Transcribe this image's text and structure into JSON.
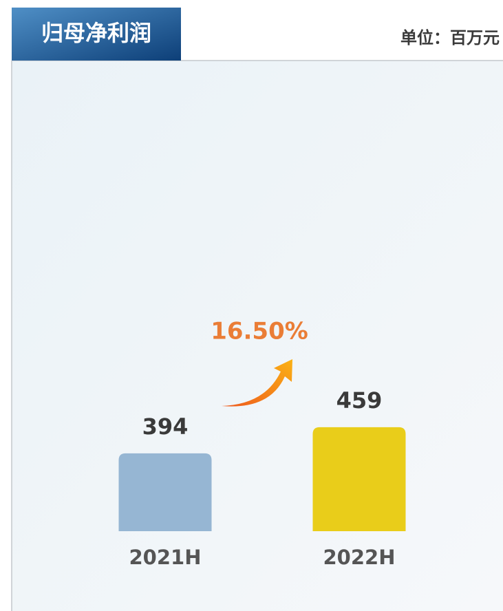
{
  "chart_data": {
    "type": "bar",
    "title": "归母净利润",
    "unit": "单位：百万元",
    "categories": [
      "2021H",
      "2022H"
    ],
    "values": [
      394,
      459
    ],
    "colors": [
      "#96b6d3",
      "#e9cd1a"
    ],
    "annotation": "16.50%",
    "ylim": [
      200,
      1400
    ]
  }
}
